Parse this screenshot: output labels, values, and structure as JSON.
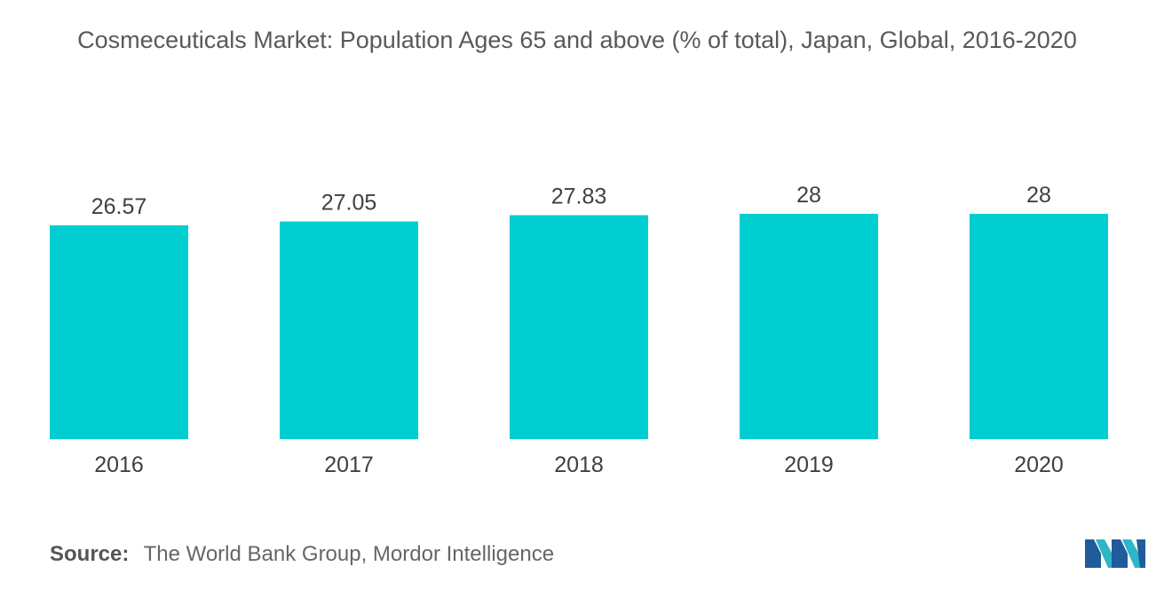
{
  "chart_data": {
    "type": "bar",
    "title": "Cosmeceuticals Market: Population Ages 65 and above (% of total), Japan, Global, 2016-2020",
    "categories": [
      "2016",
      "2017",
      "2018",
      "2019",
      "2020"
    ],
    "values": [
      26.57,
      27.05,
      27.83,
      28,
      28
    ],
    "value_labels": [
      "26.57",
      "27.05",
      "27.83",
      "28",
      "28"
    ],
    "xlabel": "",
    "ylabel": "",
    "ylim": [
      0,
      28
    ],
    "grid": false,
    "legend": "none",
    "bar_color": "#00CED1"
  },
  "source": {
    "label": "Source:",
    "text": "The World Bank Group, Mordor Intelligence"
  },
  "logo": {
    "icon": "mordor-intelligence-logo",
    "colors": [
      "#1F5C99",
      "#2FB5C8"
    ]
  }
}
